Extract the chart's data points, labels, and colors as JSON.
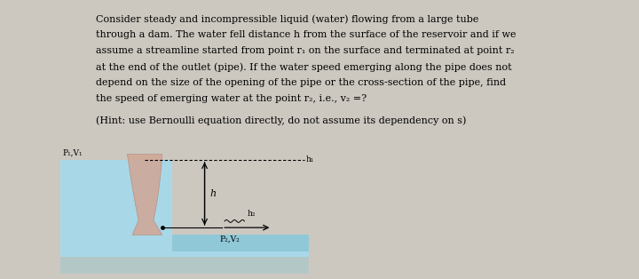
{
  "background_color": "#ccc8c0",
  "text_main_lines": [
    "Consider steady and incompressible liquid (water) flowing from a large tube",
    "through a dam. The water fell distance h from the surface of the reservoir and if we",
    "assume a streamline started from point r₁ on the surface and terminated at point r₂",
    "at the end of the outlet (pipe). If the water speed emerging along the pipe does not",
    "depend on the size of the opening of the pipe or the cross-section of the pipe, find",
    "the speed of emerging water at the point r₂, i.e., v₂ =?"
  ],
  "text_hint": "(Hint: use Bernoulli equation directly, do not assume its dependency on s)",
  "label_p1v1": "P₁,V₁",
  "label_p2v2": "P₂,V₂",
  "label_h": "h",
  "label_h1": "h₁",
  "label_h2": "h₂",
  "water_color": "#a8d8e8",
  "water_color2": "#90c8d8",
  "dam_color": "#d0a898",
  "dam_color2": "#c89888",
  "bg_color": "#ccc8c0"
}
